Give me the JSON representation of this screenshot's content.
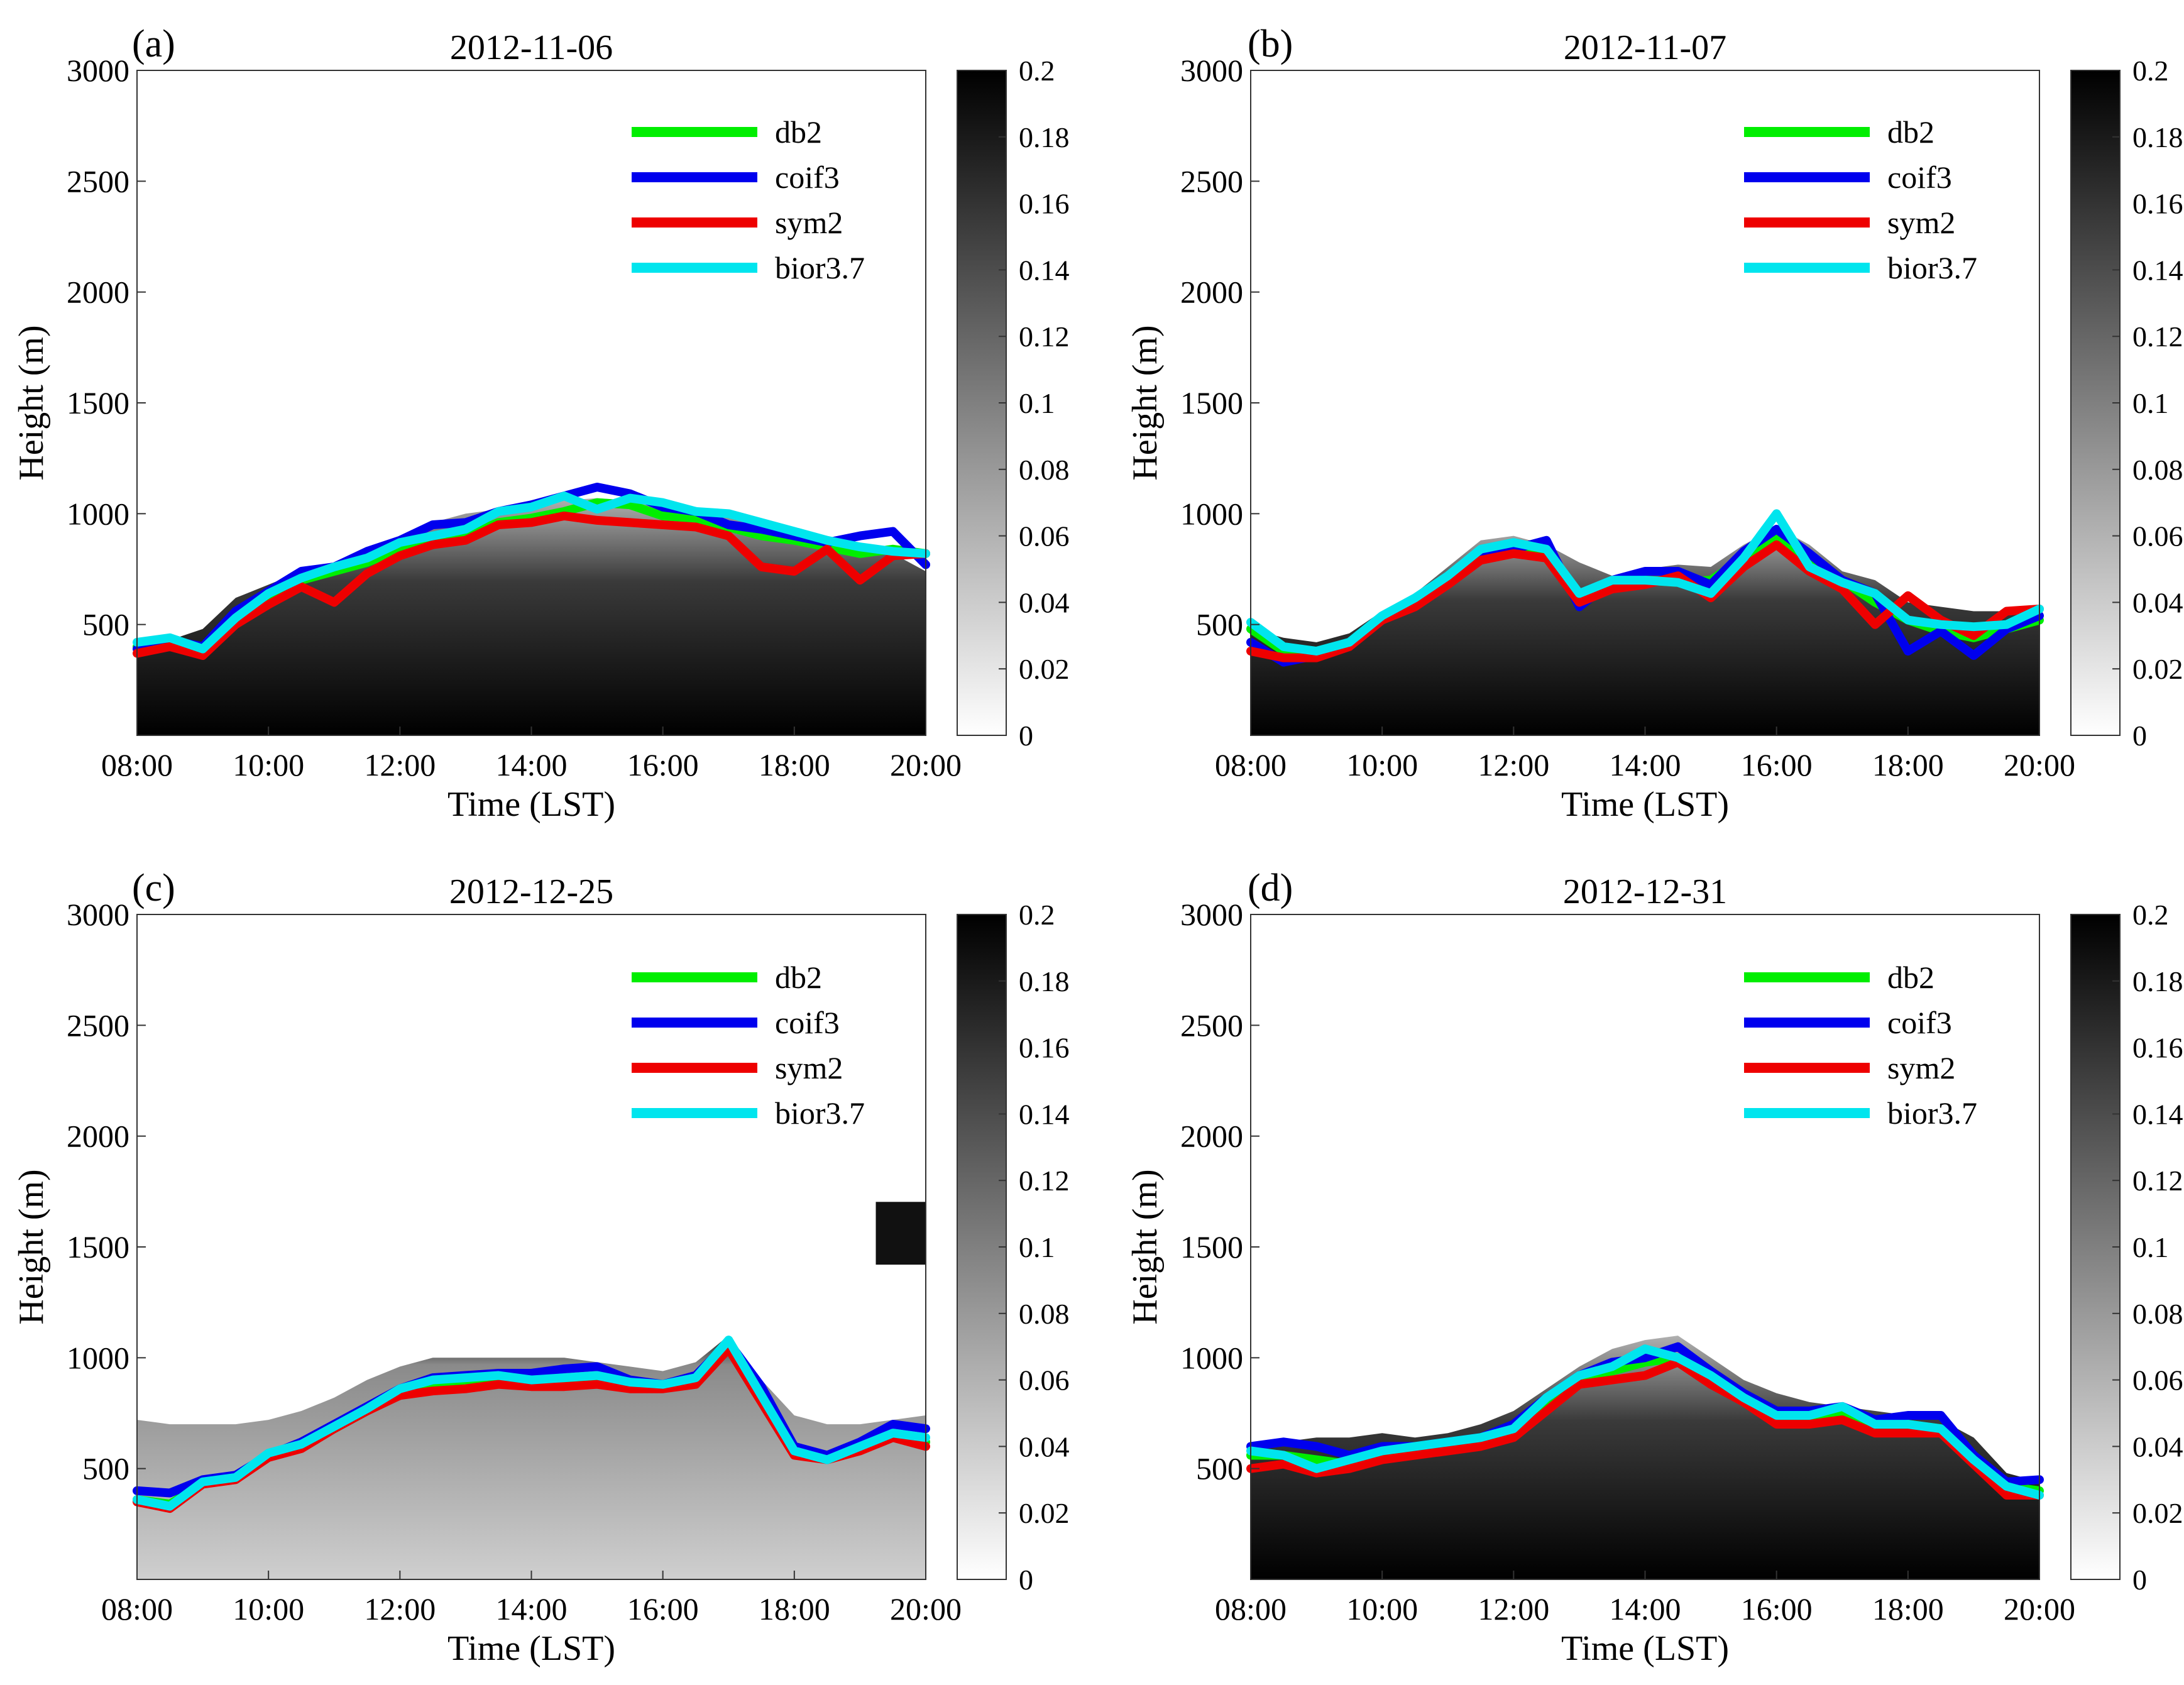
{
  "figure": {
    "colorbar_ticks": [
      "0",
      "0.02",
      "0.04",
      "0.06",
      "0.08",
      "0.1",
      "0.12",
      "0.14",
      "0.16",
      "0.18",
      "0.2"
    ]
  },
  "chart_data": [
    {
      "type": "line",
      "panel": "(a)",
      "title": "2012-11-06",
      "xlabel": "Time (LST)",
      "ylabel": "Height (m)",
      "x_ticks": [
        "08:00",
        "10:00",
        "12:00",
        "14:00",
        "16:00",
        "18:00",
        "20:00"
      ],
      "y_ticks": [
        "500",
        "1000",
        "1500",
        "2000",
        "2500",
        "3000"
      ],
      "xlim": [
        8,
        20
      ],
      "ylim": [
        0,
        3000
      ],
      "colorbar_range": [
        0,
        0.2
      ],
      "background_top": [
        [
          8,
          400
        ],
        [
          8.5,
          430
        ],
        [
          9,
          480
        ],
        [
          9.5,
          620
        ],
        [
          10,
          680
        ],
        [
          10.5,
          740
        ],
        [
          11,
          780
        ],
        [
          11.5,
          840
        ],
        [
          12,
          900
        ],
        [
          12.5,
          960
        ],
        [
          13,
          1000
        ],
        [
          13.5,
          1020
        ],
        [
          14,
          1060
        ],
        [
          14.5,
          1060
        ],
        [
          15,
          1070
        ],
        [
          15.5,
          1060
        ],
        [
          16,
          1040
        ],
        [
          16.5,
          1020
        ],
        [
          17,
          1000
        ],
        [
          17.5,
          960
        ],
        [
          18,
          920
        ],
        [
          18.5,
          880
        ],
        [
          19,
          860
        ],
        [
          19.5,
          820
        ],
        [
          20,
          740
        ]
      ],
      "anomaly": null,
      "x": [
        8,
        8.5,
        9,
        9.5,
        10,
        10.5,
        11,
        11.5,
        12,
        12.5,
        13,
        13.5,
        14,
        14.5,
        15,
        15.5,
        16,
        16.5,
        17,
        17.5,
        18,
        18.5,
        19,
        19.5,
        20
      ],
      "series": [
        {
          "name": "db2",
          "color": "#00ee00",
          "values": [
            400,
            420,
            390,
            520,
            620,
            700,
            740,
            780,
            840,
            880,
            900,
            960,
            980,
            1010,
            1050,
            1040,
            990,
            980,
            940,
            900,
            880,
            850,
            820,
            840,
            820
          ]
        },
        {
          "name": "coif3",
          "color": "#0000ee",
          "values": [
            390,
            430,
            400,
            560,
            650,
            740,
            760,
            830,
            880,
            950,
            960,
            1010,
            1040,
            1080,
            1120,
            1090,
            1030,
            1010,
            950,
            930,
            900,
            870,
            900,
            920,
            770
          ]
        },
        {
          "name": "sym2",
          "color": "#ee0000",
          "values": [
            370,
            400,
            360,
            500,
            590,
            670,
            600,
            730,
            810,
            860,
            880,
            950,
            960,
            990,
            970,
            960,
            950,
            940,
            900,
            760,
            740,
            840,
            700,
            810,
            820
          ]
        },
        {
          "name": "bior3.7",
          "color": "#00e5ee",
          "values": [
            420,
            440,
            390,
            530,
            640,
            710,
            760,
            800,
            870,
            900,
            930,
            1010,
            1030,
            1080,
            1020,
            1070,
            1050,
            1010,
            1000,
            960,
            920,
            880,
            850,
            830,
            820
          ]
        }
      ]
    },
    {
      "type": "line",
      "panel": "(b)",
      "title": "2012-11-07",
      "xlabel": "Time (LST)",
      "ylabel": "Height (m)",
      "x_ticks": [
        "08:00",
        "10:00",
        "12:00",
        "14:00",
        "16:00",
        "18:00",
        "20:00"
      ],
      "y_ticks": [
        "500",
        "1000",
        "1500",
        "2000",
        "2500",
        "3000"
      ],
      "xlim": [
        8,
        20
      ],
      "ylim": [
        0,
        3000
      ],
      "colorbar_range": [
        0,
        0.2
      ],
      "background_top": [
        [
          8,
          480
        ],
        [
          8.5,
          440
        ],
        [
          9,
          420
        ],
        [
          9.5,
          460
        ],
        [
          10,
          560
        ],
        [
          10.5,
          640
        ],
        [
          11,
          760
        ],
        [
          11.5,
          880
        ],
        [
          12,
          900
        ],
        [
          12.5,
          860
        ],
        [
          13,
          780
        ],
        [
          13.5,
          720
        ],
        [
          14,
          750
        ],
        [
          14.5,
          770
        ],
        [
          15,
          760
        ],
        [
          15.5,
          860
        ],
        [
          16,
          940
        ],
        [
          16.5,
          860
        ],
        [
          17,
          740
        ],
        [
          17.5,
          700
        ],
        [
          18,
          600
        ],
        [
          18.5,
          580
        ],
        [
          19,
          560
        ],
        [
          19.5,
          560
        ],
        [
          20,
          570
        ]
      ],
      "anomaly": null,
      "x": [
        8,
        8.5,
        9,
        9.5,
        10,
        10.5,
        11,
        11.5,
        12,
        12.5,
        13,
        13.5,
        14,
        14.5,
        15,
        15.5,
        16,
        16.5,
        17,
        17.5,
        18,
        18.5,
        19,
        19.5,
        20
      ],
      "series": [
        {
          "name": "db2",
          "color": "#00ee00",
          "values": [
            480,
            380,
            360,
            420,
            520,
            600,
            700,
            820,
            850,
            810,
            620,
            690,
            700,
            690,
            700,
            800,
            900,
            780,
            700,
            600,
            520,
            470,
            440,
            480,
            520
          ]
        },
        {
          "name": "coif3",
          "color": "#0000ee",
          "values": [
            420,
            330,
            360,
            420,
            530,
            610,
            700,
            800,
            840,
            880,
            580,
            700,
            740,
            740,
            680,
            830,
            930,
            820,
            700,
            640,
            380,
            470,
            360,
            480,
            540
          ]
        },
        {
          "name": "sym2",
          "color": "#ee0000",
          "values": [
            380,
            350,
            350,
            400,
            520,
            580,
            680,
            790,
            820,
            800,
            600,
            660,
            680,
            720,
            620,
            760,
            860,
            740,
            660,
            500,
            630,
            520,
            450,
            560,
            570
          ]
        },
        {
          "name": "bior3.7",
          "color": "#00e5ee",
          "values": [
            510,
            400,
            380,
            420,
            540,
            620,
            720,
            840,
            870,
            840,
            640,
            700,
            700,
            690,
            640,
            800,
            1000,
            760,
            690,
            640,
            520,
            500,
            490,
            500,
            570
          ]
        }
      ]
    },
    {
      "type": "line",
      "panel": "(c)",
      "title": "2012-12-25",
      "xlabel": "Time (LST)",
      "ylabel": "Height (m)",
      "x_ticks": [
        "08:00",
        "10:00",
        "12:00",
        "14:00",
        "16:00",
        "18:00",
        "20:00"
      ],
      "y_ticks": [
        "500",
        "1000",
        "1500",
        "2000",
        "2500",
        "3000"
      ],
      "xlim": [
        8,
        20
      ],
      "ylim": [
        0,
        3000
      ],
      "colorbar_range": [
        0,
        0.2
      ],
      "background_top": [
        [
          8,
          720
        ],
        [
          8.5,
          700
        ],
        [
          9,
          700
        ],
        [
          9.5,
          700
        ],
        [
          10,
          720
        ],
        [
          10.5,
          760
        ],
        [
          11,
          820
        ],
        [
          11.5,
          900
        ],
        [
          12,
          960
        ],
        [
          12.5,
          1000
        ],
        [
          13,
          1000
        ],
        [
          13.5,
          1000
        ],
        [
          14,
          1000
        ],
        [
          14.5,
          1000
        ],
        [
          15,
          980
        ],
        [
          15.5,
          960
        ],
        [
          16,
          940
        ],
        [
          16.5,
          980
        ],
        [
          17,
          1100
        ],
        [
          17.5,
          900
        ],
        [
          18,
          740
        ],
        [
          18.5,
          700
        ],
        [
          19,
          700
        ],
        [
          19.5,
          720
        ],
        [
          20,
          740
        ]
      ],
      "anomaly": {
        "x": [
          19,
          20
        ],
        "y": [
          1420,
          1760
        ]
      },
      "x": [
        8,
        8.5,
        9,
        9.5,
        10,
        10.5,
        11,
        11.5,
        12,
        12.5,
        13,
        13.5,
        14,
        14.5,
        15,
        15.5,
        16,
        16.5,
        17,
        17.5,
        18,
        18.5,
        19,
        19.5,
        20
      ],
      "series": [
        {
          "name": "db2",
          "color": "#00ee00",
          "values": [
            360,
            340,
            430,
            460,
            560,
            600,
            680,
            760,
            850,
            880,
            900,
            900,
            880,
            880,
            900,
            880,
            880,
            900,
            1040,
            820,
            580,
            560,
            600,
            640,
            620
          ]
        },
        {
          "name": "coif3",
          "color": "#0000ee",
          "values": [
            400,
            390,
            450,
            470,
            560,
            620,
            700,
            780,
            860,
            910,
            920,
            930,
            930,
            950,
            960,
            900,
            880,
            920,
            1070,
            870,
            600,
            560,
            620,
            700,
            680
          ]
        },
        {
          "name": "sym2",
          "color": "#ee0000",
          "values": [
            350,
            320,
            430,
            450,
            550,
            590,
            680,
            760,
            830,
            850,
            860,
            880,
            870,
            870,
            880,
            860,
            860,
            880,
            1040,
            800,
            560,
            540,
            580,
            640,
            600
          ]
        },
        {
          "name": "bior3.7",
          "color": "#00e5ee",
          "values": [
            360,
            330,
            440,
            460,
            570,
            610,
            690,
            770,
            860,
            900,
            910,
            920,
            900,
            910,
            920,
            890,
            880,
            910,
            1080,
            830,
            580,
            540,
            600,
            660,
            640
          ]
        }
      ]
    },
    {
      "type": "line",
      "panel": "(d)",
      "title": "2012-12-31",
      "xlabel": "Time (LST)",
      "ylabel": "Height (m)",
      "x_ticks": [
        "08:00",
        "10:00",
        "12:00",
        "14:00",
        "16:00",
        "18:00",
        "20:00"
      ],
      "y_ticks": [
        "500",
        "1000",
        "1500",
        "2000",
        "2500",
        "3000"
      ],
      "xlim": [
        8,
        20
      ],
      "ylim": [
        0,
        3000
      ],
      "colorbar_range": [
        0,
        0.2
      ],
      "background_top": [
        [
          8,
          600
        ],
        [
          8.5,
          620
        ],
        [
          9,
          640
        ],
        [
          9.5,
          640
        ],
        [
          10,
          660
        ],
        [
          10.5,
          640
        ],
        [
          11,
          660
        ],
        [
          11.5,
          700
        ],
        [
          12,
          760
        ],
        [
          12.5,
          860
        ],
        [
          13,
          960
        ],
        [
          13.5,
          1040
        ],
        [
          14,
          1080
        ],
        [
          14.5,
          1100
        ],
        [
          15,
          1000
        ],
        [
          15.5,
          900
        ],
        [
          16,
          840
        ],
        [
          16.5,
          800
        ],
        [
          17,
          780
        ],
        [
          17.5,
          760
        ],
        [
          18,
          740
        ],
        [
          18.5,
          720
        ],
        [
          19,
          640
        ],
        [
          19.5,
          480
        ],
        [
          20,
          440
        ]
      ],
      "anomaly": null,
      "x": [
        8,
        8.5,
        9,
        9.5,
        10,
        10.5,
        11,
        11.5,
        12,
        12.5,
        13,
        13.5,
        14,
        14.5,
        15,
        15.5,
        16,
        16.5,
        17,
        17.5,
        18,
        18.5,
        19,
        19.5,
        20
      ],
      "series": [
        {
          "name": "db2",
          "color": "#00ee00",
          "values": [
            560,
            560,
            540,
            520,
            560,
            580,
            600,
            620,
            660,
            780,
            900,
            940,
            980,
            1000,
            900,
            820,
            720,
            720,
            740,
            700,
            700,
            680,
            540,
            420,
            400
          ]
        },
        {
          "name": "coif3",
          "color": "#0000ee",
          "values": [
            600,
            620,
            600,
            560,
            600,
            600,
            620,
            640,
            700,
            820,
            920,
            980,
            1000,
            1050,
            940,
            840,
            760,
            760,
            780,
            720,
            740,
            740,
            560,
            440,
            450
          ]
        },
        {
          "name": "sym2",
          "color": "#ee0000",
          "values": [
            500,
            520,
            480,
            500,
            540,
            560,
            580,
            600,
            640,
            760,
            880,
            900,
            920,
            980,
            880,
            800,
            700,
            700,
            720,
            660,
            660,
            660,
            520,
            380,
            380
          ]
        },
        {
          "name": "bior3.7",
          "color": "#00e5ee",
          "values": [
            580,
            560,
            500,
            540,
            580,
            600,
            620,
            640,
            680,
            820,
            920,
            960,
            1040,
            1000,
            920,
            820,
            740,
            740,
            780,
            700,
            700,
            680,
            540,
            420,
            380
          ]
        }
      ]
    }
  ]
}
